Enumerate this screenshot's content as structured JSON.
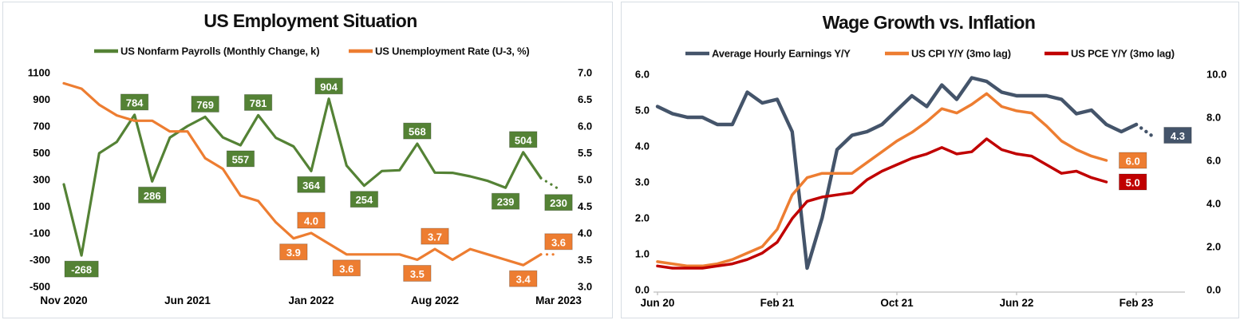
{
  "chart_data": [
    {
      "type": "line",
      "title": "US Employment Situation",
      "x": [
        "Nov 2020",
        "Dec 2020",
        "Jan 2021",
        "Feb 2021",
        "Mar 2021",
        "Apr 2021",
        "May 2021",
        "Jun 2021",
        "Jul 2021",
        "Aug 2021",
        "Sep 2021",
        "Oct 2021",
        "Nov 2021",
        "Dec 2021",
        "Jan 2022",
        "Feb 2022",
        "Mar 2022",
        "Apr 2022",
        "May 2022",
        "Jun 2022",
        "Jul 2022",
        "Aug 2022",
        "Sep 2022",
        "Oct 2022",
        "Nov 2022",
        "Dec 2022",
        "Jan 2023",
        "Feb 2023",
        "Mar 2023"
      ],
      "x_tick_labels": [
        "Nov 2020",
        "Jun 2021",
        "Jan 2022",
        "Aug 2022",
        "Mar 2023"
      ],
      "left_axis": {
        "min": -500,
        "max": 1100,
        "ticks": [
          "1100",
          "900",
          "700",
          "500",
          "300",
          "100",
          "-100",
          "-300",
          "-500"
        ]
      },
      "right_axis": {
        "min": 3.0,
        "max": 7.0,
        "ticks": [
          "7.0",
          "6.5",
          "6.0",
          "5.5",
          "5.0",
          "4.5",
          "4.0",
          "3.5",
          "3.0"
        ]
      },
      "grid": false,
      "legend_position": "top",
      "series": [
        {
          "id": "nonfarm-payrolls",
          "name": "US Nonfarm Payrolls (Monthly Change, k)",
          "axis": "left",
          "color": "#548235",
          "width": 3.2,
          "dotted_end": true,
          "values": [
            264,
            -268,
            497,
            582,
            784,
            286,
            614,
            700,
            769,
            615,
            557,
            781,
            612,
            548,
            364,
            904,
            405,
            254,
            364,
            370,
            568,
            352,
            350,
            324,
            290,
            239,
            504,
            311,
            230
          ],
          "labels": [
            {
              "i": 1,
              "text": "-268",
              "pos": "below"
            },
            {
              "i": 4,
              "text": "784",
              "pos": "above"
            },
            {
              "i": 5,
              "text": "286",
              "pos": "below"
            },
            {
              "i": 8,
              "text": "769",
              "pos": "above"
            },
            {
              "i": 10,
              "text": "557",
              "pos": "below"
            },
            {
              "i": 11,
              "text": "781",
              "pos": "above"
            },
            {
              "i": 14,
              "text": "364",
              "pos": "below"
            },
            {
              "i": 15,
              "text": "904",
              "pos": "above"
            },
            {
              "i": 17,
              "text": "254",
              "pos": "below"
            },
            {
              "i": 20,
              "text": "568",
              "pos": "above"
            },
            {
              "i": 25,
              "text": "239",
              "pos": "below"
            },
            {
              "i": 26,
              "text": "504",
              "pos": "above"
            },
            {
              "i": 28,
              "text": "230",
              "pos": "below"
            }
          ]
        },
        {
          "id": "unemployment-rate",
          "name": "US Unemployment Rate (U-3, %)",
          "axis": "right",
          "color": "#ED7D31",
          "width": 3.2,
          "dotted_end": true,
          "values": [
            6.8,
            6.7,
            6.4,
            6.2,
            6.1,
            6.1,
            5.9,
            5.9,
            5.4,
            5.2,
            4.7,
            4.6,
            4.2,
            3.9,
            4.0,
            3.8,
            3.6,
            3.6,
            3.6,
            3.6,
            3.5,
            3.7,
            3.5,
            3.7,
            3.6,
            3.5,
            3.4,
            3.6,
            3.6
          ],
          "labels": [
            {
              "i": 13,
              "text": "3.9",
              "pos": "below"
            },
            {
              "i": 14,
              "text": "4.0",
              "pos": "above"
            },
            {
              "i": 16,
              "text": "3.6",
              "pos": "below"
            },
            {
              "i": 20,
              "text": "3.5",
              "pos": "below"
            },
            {
              "i": 21,
              "text": "3.7",
              "pos": "above"
            },
            {
              "i": 26,
              "text": "3.4",
              "pos": "below"
            },
            {
              "i": 28,
              "text": "3.6",
              "pos": "above"
            }
          ]
        }
      ]
    },
    {
      "type": "line",
      "title": "Wage Growth vs. Inflation",
      "x": [
        "Jun 2020",
        "Jul 2020",
        "Aug 2020",
        "Sep 2020",
        "Oct 2020",
        "Nov 2020",
        "Dec 2020",
        "Jan 2021",
        "Feb 2021",
        "Mar 2021",
        "Apr 2021",
        "May 2021",
        "Jun 2021",
        "Jul 2021",
        "Aug 2021",
        "Sep 2021",
        "Oct 2021",
        "Nov 2021",
        "Dec 2021",
        "Jan 2022",
        "Feb 2022",
        "Mar 2022",
        "Apr 2022",
        "May 2022",
        "Jun 2022",
        "Jul 2022",
        "Aug 2022",
        "Sep 2022",
        "Oct 2022",
        "Nov 2022",
        "Dec 2022",
        "Jan 2023",
        "Feb 2023",
        "Mar 2023"
      ],
      "x_tick_labels": [
        "Jun 20",
        "Feb 21",
        "Oct 21",
        "Jun 22",
        "Feb 23"
      ],
      "left_axis": {
        "min": 0.0,
        "max": 6.0,
        "ticks": [
          "6.0",
          "5.0",
          "4.0",
          "3.0",
          "2.0",
          "1.0",
          "0.0"
        ]
      },
      "right_axis": {
        "min": 0.0,
        "max": 10.0,
        "ticks": [
          "10.0",
          "8.0",
          "6.0",
          "4.0",
          "2.0",
          "0.0"
        ]
      },
      "grid": false,
      "legend_position": "top",
      "series": [
        {
          "id": "avg-hourly-earnings",
          "name": "Average Hourly Earnings Y/Y",
          "axis": "left",
          "color": "#44546A",
          "width": 4.4,
          "dotted_end": true,
          "values": [
            5.1,
            4.9,
            4.8,
            4.8,
            4.6,
            4.6,
            5.5,
            5.2,
            5.3,
            4.4,
            0.6,
            2.0,
            3.9,
            4.3,
            4.4,
            4.6,
            5.0,
            5.4,
            5.1,
            5.7,
            5.3,
            5.9,
            5.8,
            5.5,
            5.4,
            5.4,
            5.4,
            5.3,
            4.9,
            5.0,
            4.6,
            4.4,
            4.6,
            4.3
          ],
          "labels": [
            {
              "i": 33,
              "text": "4.3",
              "pos": "right"
            }
          ]
        },
        {
          "id": "us-cpi",
          "name": "US CPI Y/Y (3mo lag)",
          "axis": "right",
          "color": "#ED7D31",
          "width": 3.5,
          "dotted_end": false,
          "values": [
            1.3,
            1.2,
            1.1,
            1.1,
            1.2,
            1.4,
            1.7,
            2.0,
            2.8,
            4.4,
            5.2,
            5.4,
            5.4,
            5.4,
            5.9,
            6.4,
            6.9,
            7.3,
            7.8,
            8.4,
            8.2,
            8.6,
            9.1,
            8.5,
            8.3,
            8.2,
            7.6,
            6.9,
            6.5,
            6.2,
            6.0
          ],
          "labels": [
            {
              "i": 30,
              "text": "6.0",
              "pos": "right"
            }
          ]
        },
        {
          "id": "us-pce",
          "name": "US PCE Y/Y (3mo lag)",
          "axis": "right",
          "color": "#C00000",
          "width": 3.5,
          "dotted_end": false,
          "values": [
            1.1,
            1.0,
            1.0,
            1.0,
            1.1,
            1.2,
            1.4,
            1.7,
            2.2,
            3.3,
            4.1,
            4.3,
            4.4,
            4.5,
            5.1,
            5.5,
            5.8,
            6.1,
            6.3,
            6.6,
            6.3,
            6.4,
            7.0,
            6.5,
            6.3,
            6.2,
            5.8,
            5.4,
            5.5,
            5.2,
            5.0
          ],
          "labels": [
            {
              "i": 30,
              "text": "5.0",
              "pos": "right"
            }
          ]
        }
      ]
    }
  ]
}
